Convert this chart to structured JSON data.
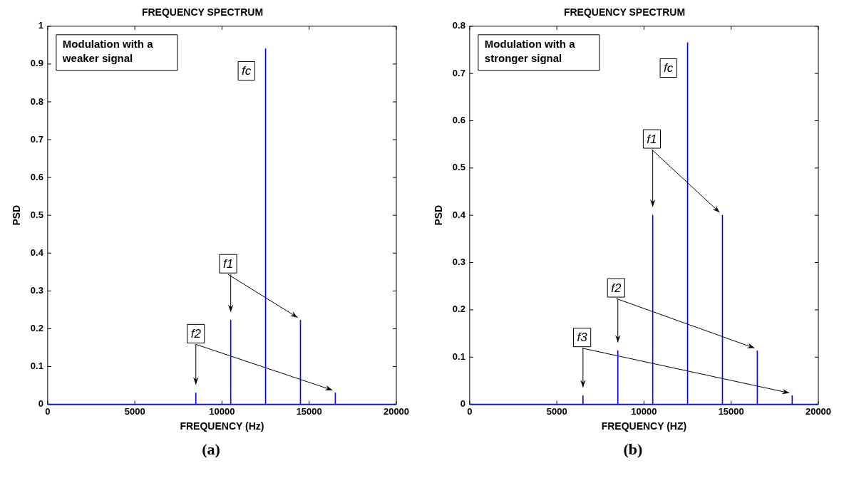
{
  "chart_data": [
    {
      "type": "line",
      "title": "FREQUENCY SPECTRUM",
      "xlabel": "FREQUENCY (Hz)",
      "ylabel": "PSD",
      "xlim": [
        0,
        20000
      ],
      "xticks": [
        0,
        5000,
        10000,
        15000,
        20000
      ],
      "ylim": [
        0,
        1
      ],
      "yticks": [
        0,
        0.1,
        0.2,
        0.3,
        0.4,
        0.5,
        0.6,
        0.7,
        0.8,
        0.9,
        1
      ],
      "grid": false,
      "legend": false,
      "marker": "none",
      "series": [
        {
          "color": "#0000ff",
          "x": [
            0,
            8500,
            8500,
            8500,
            10500,
            10500,
            10500,
            12500,
            12500,
            12500,
            14500,
            14500,
            14500,
            16500,
            16500,
            16500,
            20000
          ],
          "values": [
            0,
            0,
            0.03,
            0,
            0,
            0.222,
            0,
            0,
            0.94,
            0,
            0,
            0.222,
            0,
            0,
            0.03,
            0,
            0
          ]
        }
      ],
      "annotations": [
        "Modulation with a weaker signal",
        "(a)",
        {
          "text": "fc",
          "x": 11400,
          "y": 0.88
        },
        {
          "text": "f1",
          "x": 10350,
          "y": 0.37
        },
        {
          "text": "f2",
          "x": 8500,
          "y": 0.185
        }
      ]
    },
    {
      "type": "line",
      "title": "FREQUENCY SPECTRUM",
      "xlabel": "FREQUENCY (HZ)",
      "ylabel": "PSD",
      "xlim": [
        0,
        20000
      ],
      "xticks": [
        0,
        5000,
        10000,
        15000,
        20000
      ],
      "ylim": [
        0,
        0.8
      ],
      "yticks": [
        0,
        0.1,
        0.2,
        0.3,
        0.4,
        0.5,
        0.6,
        0.7,
        0.8
      ],
      "grid": false,
      "legend": false,
      "marker": "none",
      "series": [
        {
          "color": "#0000ff",
          "x": [
            0,
            6500,
            6500,
            6500,
            8500,
            8500,
            8500,
            10500,
            10500,
            10500,
            12500,
            12500,
            12500,
            14500,
            14500,
            14500,
            16500,
            16500,
            16500,
            18500,
            18500,
            18500,
            20000
          ],
          "values": [
            0,
            0,
            0.018,
            0,
            0,
            0.113,
            0,
            0,
            0.4,
            0,
            0,
            0.765,
            0,
            0,
            0.4,
            0,
            0,
            0.113,
            0,
            0,
            0.018,
            0,
            0
          ]
        }
      ],
      "annotations": [
        "Modulation with a stronger signal",
        "(b)",
        {
          "text": "fc",
          "x": 11400,
          "y": 0.71
        },
        {
          "text": "f1",
          "x": 10450,
          "y": 0.56
        },
        {
          "text": "f2",
          "x": 8400,
          "y": 0.245
        },
        {
          "text": "f3",
          "x": 6450,
          "y": 0.14
        }
      ]
    }
  ]
}
